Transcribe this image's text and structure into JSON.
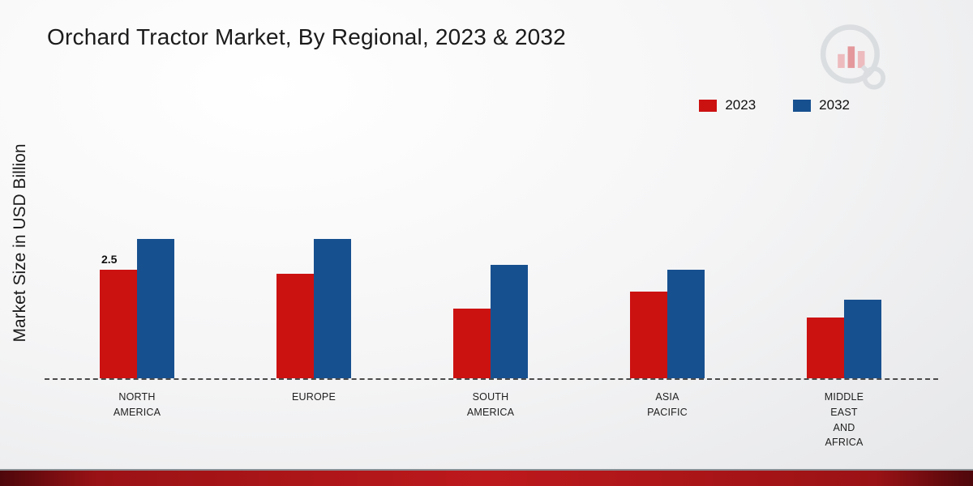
{
  "title": "Orchard Tractor Market, By Regional, 2023 & 2032",
  "y_axis_label": "Market Size in USD Billion",
  "chart_data": {
    "type": "bar",
    "categories": [
      "North America",
      "Europe",
      "South America",
      "Asia Pacific",
      "Middle East and Africa"
    ],
    "category_label_lines": [
      [
        "NORTH",
        "AMERICA"
      ],
      [
        "EUROPE"
      ],
      [
        "SOUTH",
        "AMERICA"
      ],
      [
        "ASIA",
        "PACIFIC"
      ],
      [
        "MIDDLE",
        "EAST",
        "AND",
        "AFRICA"
      ]
    ],
    "series": [
      {
        "name": "2023",
        "color": "#cc1111",
        "values": [
          2.5,
          2.4,
          1.6,
          2.0,
          1.4
        ]
      },
      {
        "name": "2032",
        "color": "#17508f",
        "values": [
          3.2,
          3.2,
          2.6,
          2.5,
          1.8
        ]
      }
    ],
    "ylabel": "Market Size in USD Billion",
    "ylim": [
      0,
      3.5
    ],
    "grid": false,
    "legend_position": "top-right",
    "baseline_style": "dashed",
    "data_labels": [
      {
        "series": "2023",
        "category": "North America",
        "category_index": 0,
        "text": "2.5"
      }
    ]
  },
  "colors": {
    "accent_red": "#cc1111",
    "accent_blue": "#17508f",
    "footer_band": "#a01215"
  }
}
